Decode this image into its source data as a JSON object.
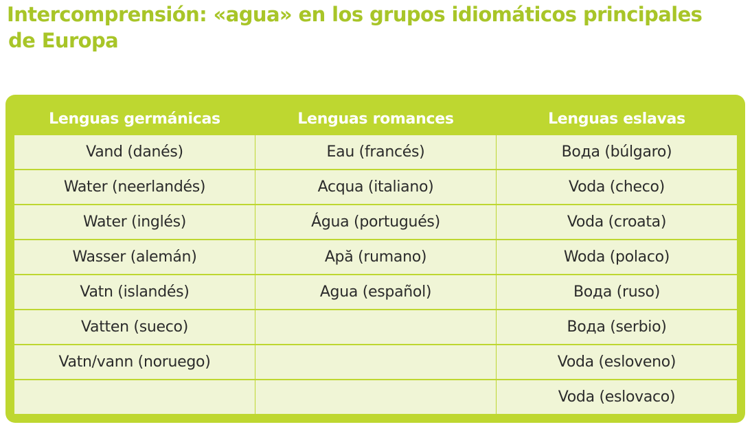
{
  "title_lines": [
    "Intercomprensión: «agua» en los grupos idiomáticos principales",
    "de Europa"
  ],
  "colors": {
    "accent": "#bed730",
    "title": "#a8c528",
    "cell": "#f0f5d6"
  },
  "table": {
    "headers": [
      "Lenguas germánicas",
      "Lenguas romances",
      "Lenguas eslavas"
    ],
    "rows": [
      [
        "Vand (danés)",
        "Eau (francés)",
        "Вода (búlgaro)"
      ],
      [
        "Water (neerlandés)",
        "Acqua (italiano)",
        "Voda (checo)"
      ],
      [
        "Water (inglés)",
        "Água (portugués)",
        "Voda (croata)"
      ],
      [
        "Wasser (alemán)",
        "Apă (rumano)",
        "Woda (polaco)"
      ],
      [
        "Vatn (islandés)",
        "Agua (español)",
        "Вода (ruso)"
      ],
      [
        "Vatten (sueco)",
        "",
        "Вода (serbio)"
      ],
      [
        "Vatn/vann (noruego)",
        "",
        "Voda (esloveno)"
      ],
      [
        "",
        "",
        "Voda (eslovaco)"
      ]
    ]
  }
}
